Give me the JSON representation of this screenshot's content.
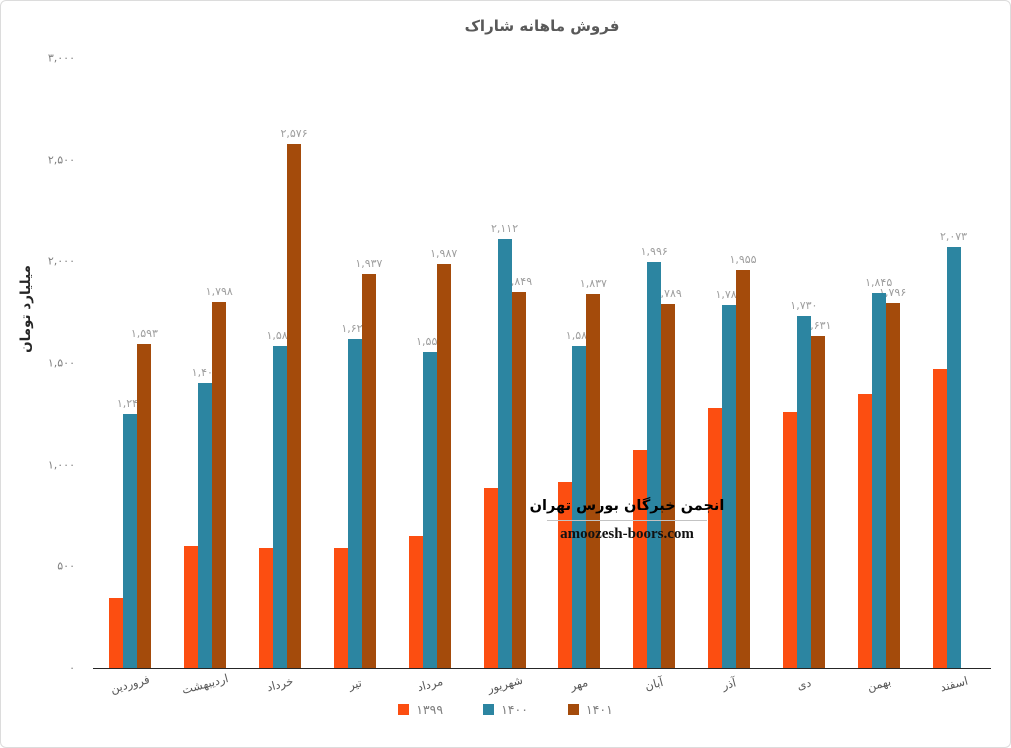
{
  "title": "فروش ماهانه شاراک",
  "y_axis": {
    "title": "میلیارد تومان",
    "ticks": [
      {
        "value": 0,
        "label": "۰"
      },
      {
        "value": 500,
        "label": "۵۰۰"
      },
      {
        "value": 1000,
        "label": "۱,۰۰۰"
      },
      {
        "value": 1500,
        "label": "۱,۵۰۰"
      },
      {
        "value": 2000,
        "label": "۲,۰۰۰"
      },
      {
        "value": 2500,
        "label": "۲,۵۰۰"
      },
      {
        "value": 3000,
        "label": "۳,۰۰۰"
      }
    ]
  },
  "watermark": {
    "line1": "انجمن خبرگان بورس تهران",
    "line2": "amoozesh-boors.com"
  },
  "legend": [
    {
      "label": "۱۳۹۹",
      "color": "#FC4E11"
    },
    {
      "label": "۱۴۰۰",
      "color": "#2C85A1"
    },
    {
      "label": "۱۴۰۱",
      "color": "#A44B0B"
    }
  ],
  "chart_data": {
    "type": "bar",
    "title": "فروش ماهانه شاراک",
    "ylabel": "میلیارد تومان",
    "ylim": [
      0,
      3000
    ],
    "grid": false,
    "legend_position": "bottom",
    "x_tick_rotation": -15,
    "categories": [
      "فروردین",
      "اردیبهشت",
      "خرداد",
      "تیر",
      "مرداد",
      "شهریور",
      "مهر",
      "آبان",
      "آذر",
      "دی",
      "بهمن",
      "اسفند"
    ],
    "series": [
      {
        "id": "1399",
        "name": "۱۳۹۹",
        "color": "#FC4E11",
        "values": [
          345,
          600,
          590,
          590,
          650,
          885,
          915,
          1070,
          1280,
          1260,
          1350,
          1470
        ],
        "labels": null
      },
      {
        "id": "1400",
        "name": "۱۴۰۰",
        "color": "#2C85A1",
        "values": [
          1247,
          1401,
          1586,
          1620,
          1553,
          2112,
          1586,
          1996,
          1786,
          1730,
          1845,
          2073
        ],
        "labels": [
          "۱,۲۴۷",
          "۱,۴۰۱",
          "۱,۵۸۶",
          "۱,۶۲۰",
          "۱,۵۵۳",
          "۲,۱۱۲",
          "۱,۵۸۶",
          "۱,۹۹۶",
          "۱,۷۸۶",
          "۱,۷۳۰",
          "۱,۸۴۵",
          "۲,۰۷۳"
        ]
      },
      {
        "id": "1401",
        "name": "۱۴۰۱",
        "color": "#A44B0B",
        "values": [
          1593,
          1798,
          2576,
          1937,
          1987,
          1849,
          1837,
          1789,
          1955,
          1631,
          1796,
          null
        ],
        "labels": [
          "۱,۵۹۳",
          "۱,۷۹۸",
          "۲,۵۷۶",
          "۱,۹۳۷",
          "۱,۹۸۷",
          "۱,۸۴۹",
          "۱,۸۳۷",
          "۱,۷۸۹",
          "۱,۹۵۵",
          "۱,۶۳۱",
          "۱,۷۹۶",
          null
        ]
      }
    ]
  }
}
